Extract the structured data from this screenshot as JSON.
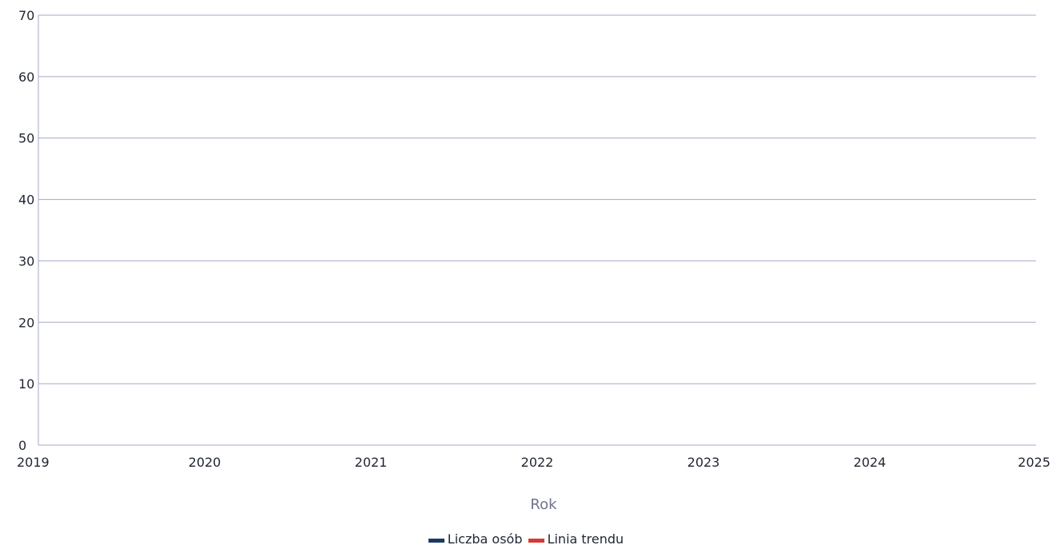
{
  "chart_data": {
    "type": "line",
    "title": "",
    "xlabel": "Rok",
    "ylabel": "",
    "x_ticks": [
      "2019",
      "2020",
      "2021",
      "2022",
      "2023",
      "2024",
      "2025"
    ],
    "xlim": [
      2019,
      2025
    ],
    "y_ticks": [
      0,
      10,
      20,
      30,
      40,
      50,
      60,
      70
    ],
    "ylim": [
      0,
      70
    ],
    "grid": true,
    "grid_color": "#a6a8c8",
    "series": [
      {
        "name": "Liczba osób",
        "color": "#1c3a63",
        "points": []
      },
      {
        "name": "Linia trendu",
        "color": "#d63a34",
        "points": []
      }
    ],
    "legend_position": "bottom-center"
  }
}
